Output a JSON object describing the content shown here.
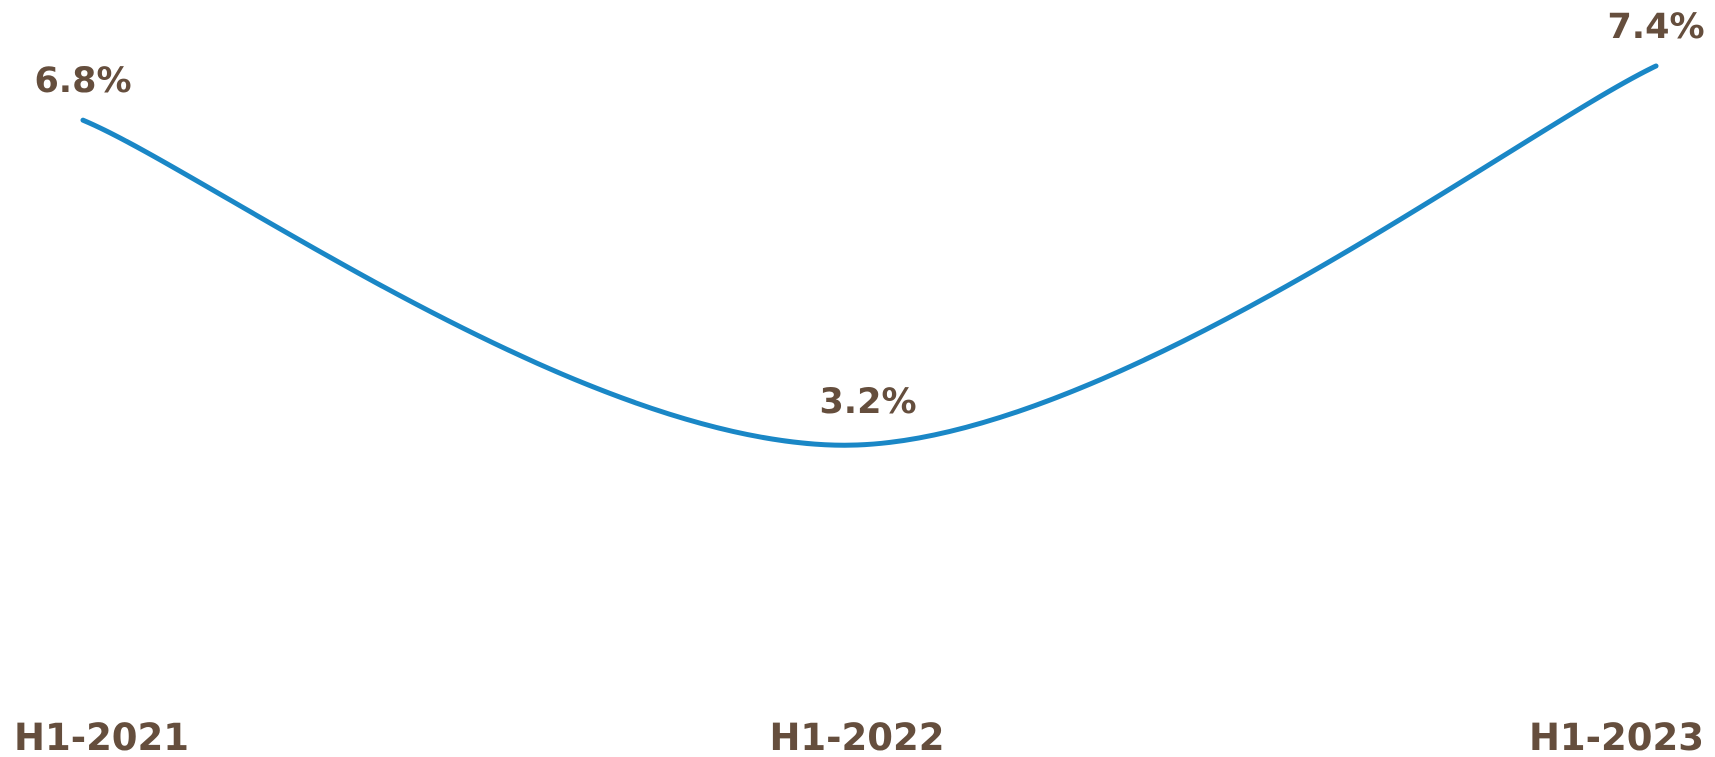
{
  "chart_data": {
    "type": "line",
    "categories": [
      "H1-2021",
      "H1-2022",
      "H1-2023"
    ],
    "values": [
      6.8,
      3.2,
      7.4
    ],
    "data_labels": [
      "6.8%",
      "3.2%",
      "7.4%"
    ],
    "title": "",
    "xlabel": "",
    "ylabel": "",
    "smooth": true,
    "grid": false,
    "y_axis_visible": false,
    "legend": "none",
    "line_color": "#1A87C6",
    "text_color": "#654E3D"
  }
}
